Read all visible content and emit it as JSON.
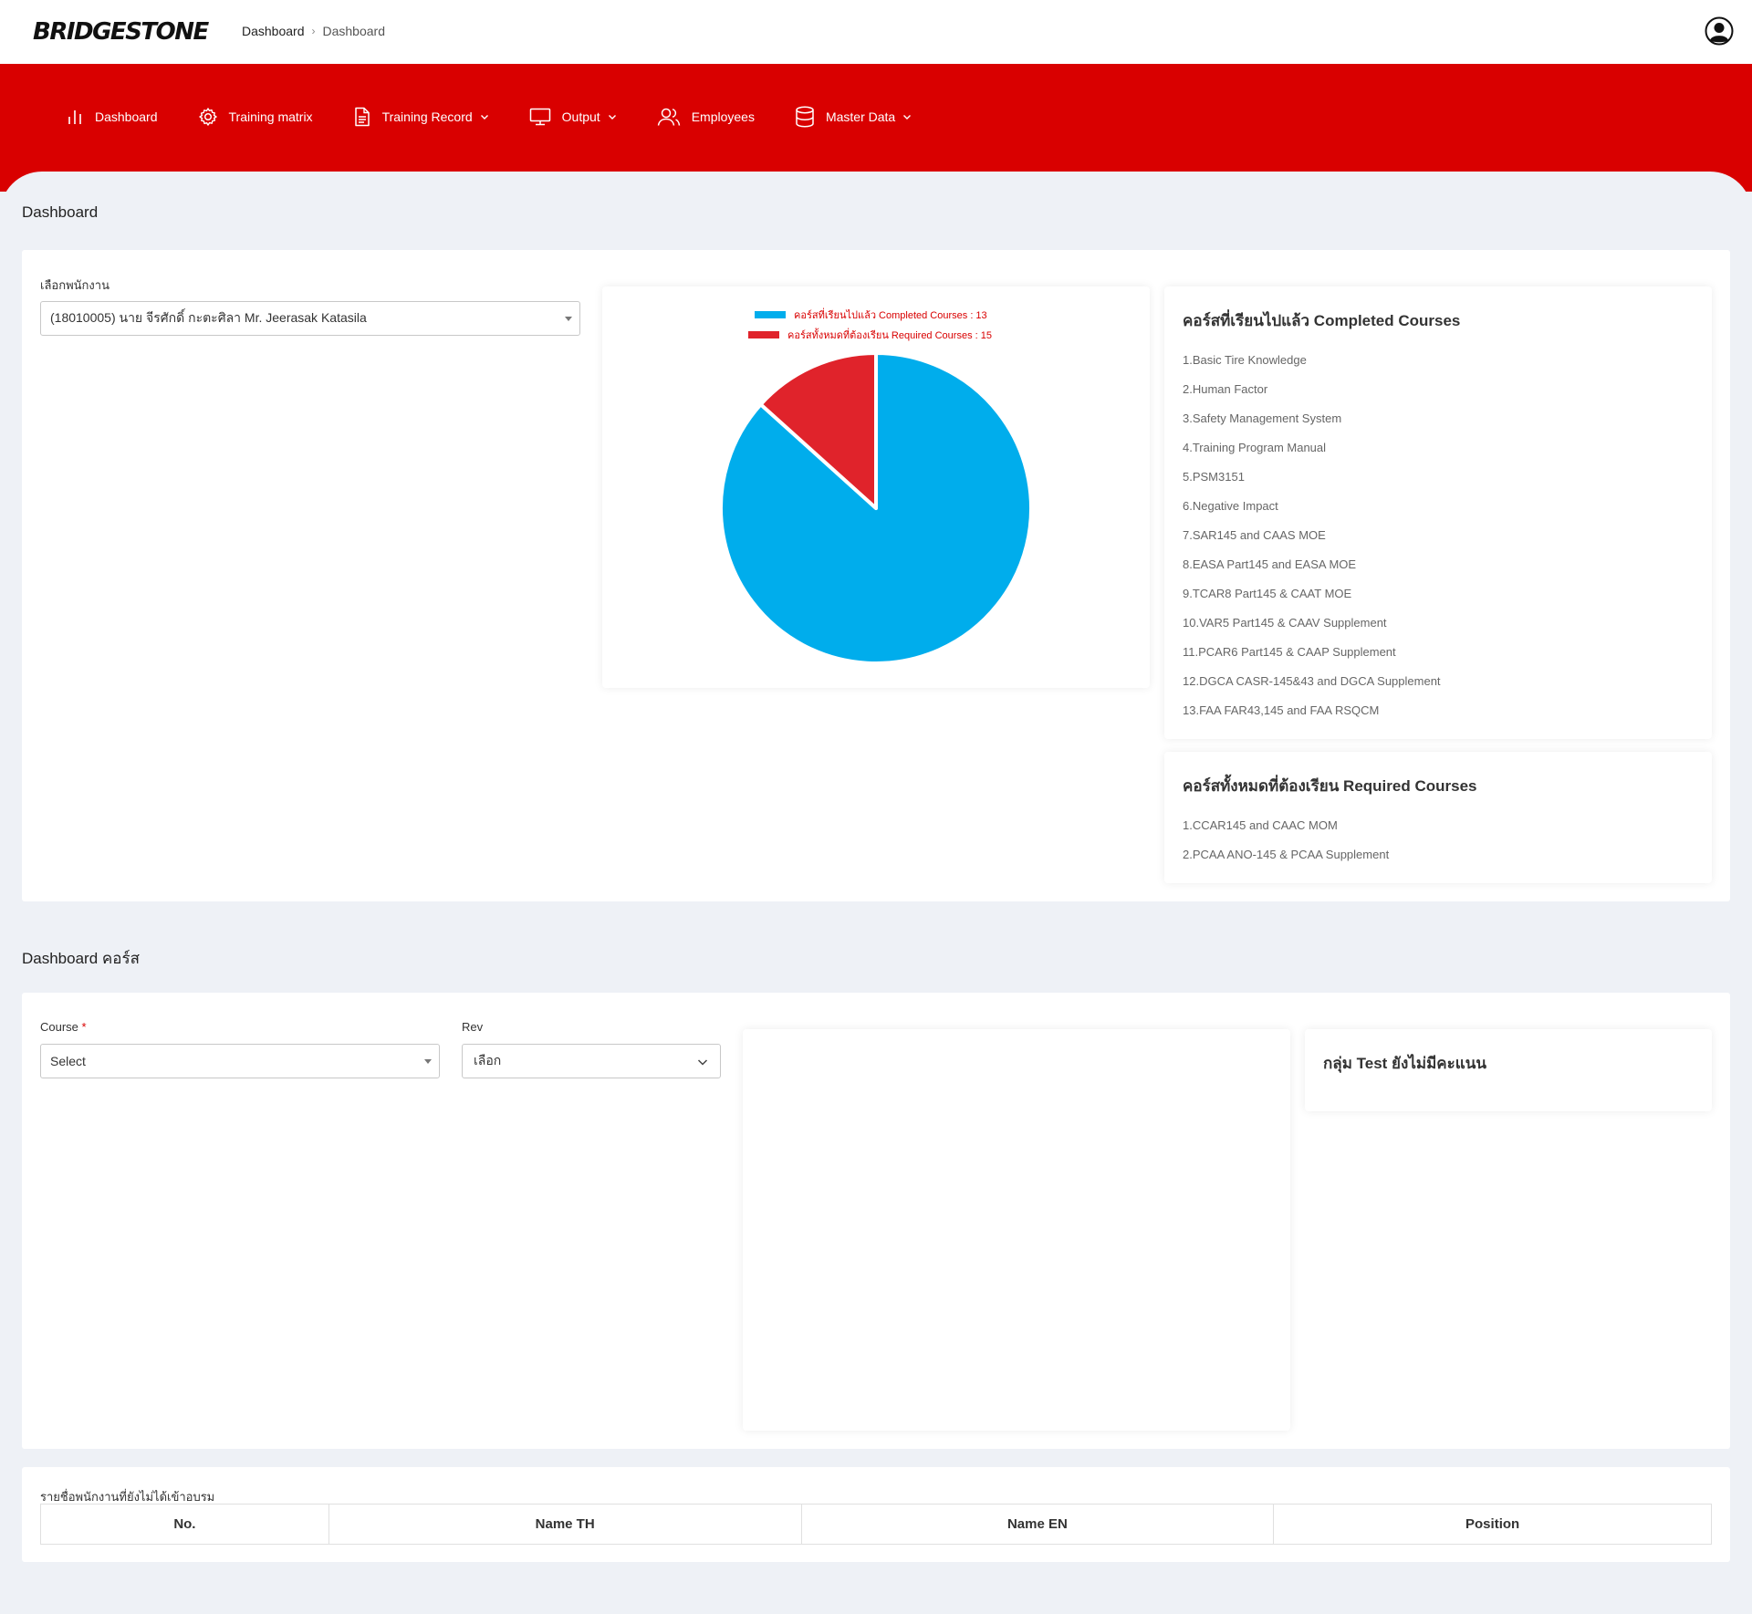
{
  "header": {
    "logo_text": "BRIDGESTONE",
    "breadcrumb": [
      "Dashboard",
      "Dashboard"
    ]
  },
  "nav": {
    "items": [
      {
        "label": "Dashboard",
        "icon": "bar-chart-icon",
        "has_dropdown": false
      },
      {
        "label": "Training matrix",
        "icon": "gear-icon",
        "has_dropdown": false
      },
      {
        "label": "Training Record",
        "icon": "document-icon",
        "has_dropdown": true
      },
      {
        "label": "Output",
        "icon": "monitor-icon",
        "has_dropdown": true
      },
      {
        "label": "Employees",
        "icon": "users-icon",
        "has_dropdown": false
      },
      {
        "label": "Master Data",
        "icon": "database-icon",
        "has_dropdown": true
      }
    ]
  },
  "dashboard": {
    "title": "Dashboard",
    "employee_label": "เลือกพนักงาน",
    "employee_value": "(18010005) นาย จีรศักดิ์ กะตะศิลา Mr. Jeerasak Katasila",
    "completed_title": "คอร์สที่เรียนไปแล้ว Completed Courses",
    "completed_courses": [
      "1.Basic Tire Knowledge",
      "2.Human Factor",
      "3.Safety Management System",
      "4.Training Program Manual",
      "5.PSM3151",
      "6.Negative Impact",
      "7.SAR145 and CAAS MOE",
      "8.EASA Part145 and EASA MOE",
      "9.TCAR8 Part145 & CAAT MOE",
      "10.VAR5 Part145 & CAAV Supplement",
      "11.PCAR6 Part145 & CAAP Supplement",
      "12.DGCA CASR-145&43 and DGCA Supplement",
      "13.FAA FAR43,145 and FAA RSQCM"
    ],
    "required_title": "คอร์สทั้งหมดที่ต้องเรียน Required Courses",
    "required_courses": [
      "1.CCAR145 and CAAC MOM",
      "2.PCAA ANO-145 & PCAA Supplement"
    ]
  },
  "chart_data": {
    "type": "pie",
    "slices": [
      {
        "label": "คอร์สที่เรียนไปแล้ว Completed Courses : 13",
        "value": 13,
        "color": "#00adec"
      },
      {
        "label": "คอร์สทั้งหมดที่ต้องเรียน Required Courses : 15",
        "value": 2,
        "color": "#e0232b"
      }
    ],
    "legend_placement": "top"
  },
  "course_dashboard": {
    "title": "Dashboard คอร์ส",
    "course_label": "Course",
    "course_required_mark": "*",
    "course_value": "Select",
    "rev_label": "Rev",
    "rev_value": "เลือก",
    "group_title": "กลุ่ม Test ยังไม่มีคะแนน"
  },
  "untrained": {
    "title": "รายชื่อพนักงานที่ยังไม่ได้เข้าอบรม",
    "columns": [
      "No.",
      "Name TH",
      "Name EN",
      "Position"
    ]
  },
  "colors": {
    "brand_red": "#d90000",
    "completed_blue": "#00adec",
    "required_red": "#e0232b"
  }
}
